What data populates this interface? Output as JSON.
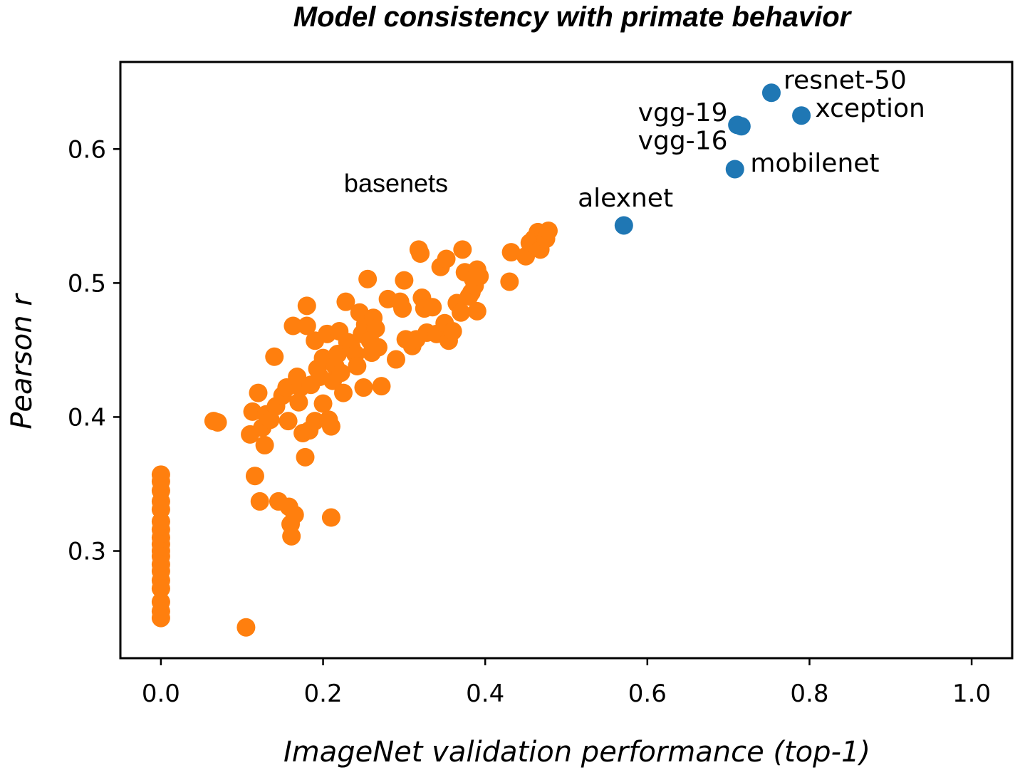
{
  "chart_data": {
    "type": "scatter",
    "title": "Model consistency with primate behavior",
    "xlabel": "ImageNet validation performance (top-1)",
    "ylabel": "Pearson r",
    "xlim": [
      -0.05,
      1.05
    ],
    "ylim": [
      0.22,
      0.665
    ],
    "xticks": [
      0.0,
      0.2,
      0.4,
      0.6,
      0.8,
      1.0
    ],
    "xtick_labels": [
      "0.0",
      "0.2",
      "0.4",
      "0.6",
      "0.8",
      "1.0"
    ],
    "yticks": [
      0.3,
      0.4,
      0.5,
      0.6
    ],
    "ytick_labels": [
      "0.3",
      "0.4",
      "0.5",
      "0.6"
    ],
    "grid": false,
    "series": [
      {
        "color": "#ff7f0e",
        "points": [
          [
            0.0,
            0.357
          ],
          [
            0.0,
            0.352
          ],
          [
            0.0,
            0.345
          ],
          [
            0.0,
            0.337
          ],
          [
            0.0,
            0.331
          ],
          [
            0.0,
            0.322
          ],
          [
            0.0,
            0.316
          ],
          [
            0.0,
            0.31
          ],
          [
            0.0,
            0.305
          ],
          [
            0.0,
            0.3
          ],
          [
            0.0,
            0.296
          ],
          [
            0.0,
            0.29
          ],
          [
            0.0,
            0.285
          ],
          [
            0.0,
            0.278
          ],
          [
            0.0,
            0.272
          ],
          [
            0.0,
            0.262
          ],
          [
            0.0,
            0.255
          ],
          [
            0.0,
            0.25
          ],
          [
            0.065,
            0.397
          ],
          [
            0.07,
            0.396
          ],
          [
            0.105,
            0.243
          ],
          [
            0.11,
            0.387
          ],
          [
            0.113,
            0.404
          ],
          [
            0.116,
            0.356
          ],
          [
            0.12,
            0.418
          ],
          [
            0.122,
            0.337
          ],
          [
            0.125,
            0.392
          ],
          [
            0.128,
            0.379
          ],
          [
            0.13,
            0.402
          ],
          [
            0.135,
            0.398
          ],
          [
            0.14,
            0.445
          ],
          [
            0.142,
            0.408
          ],
          [
            0.145,
            0.337
          ],
          [
            0.15,
            0.416
          ],
          [
            0.155,
            0.422
          ],
          [
            0.157,
            0.397
          ],
          [
            0.158,
            0.333
          ],
          [
            0.16,
            0.32
          ],
          [
            0.161,
            0.311
          ],
          [
            0.163,
            0.468
          ],
          [
            0.165,
            0.327
          ],
          [
            0.168,
            0.43
          ],
          [
            0.17,
            0.411
          ],
          [
            0.172,
            0.422
          ],
          [
            0.175,
            0.388
          ],
          [
            0.178,
            0.37
          ],
          [
            0.18,
            0.468
          ],
          [
            0.18,
            0.483
          ],
          [
            0.183,
            0.39
          ],
          [
            0.185,
            0.424
          ],
          [
            0.19,
            0.457
          ],
          [
            0.19,
            0.397
          ],
          [
            0.193,
            0.436
          ],
          [
            0.196,
            0.43
          ],
          [
            0.2,
            0.444
          ],
          [
            0.2,
            0.41
          ],
          [
            0.205,
            0.462
          ],
          [
            0.207,
            0.398
          ],
          [
            0.21,
            0.325
          ],
          [
            0.21,
            0.393
          ],
          [
            0.212,
            0.427
          ],
          [
            0.215,
            0.438
          ],
          [
            0.218,
            0.447
          ],
          [
            0.22,
            0.464
          ],
          [
            0.222,
            0.433
          ],
          [
            0.225,
            0.418
          ],
          [
            0.228,
            0.486
          ],
          [
            0.23,
            0.456
          ],
          [
            0.235,
            0.452
          ],
          [
            0.24,
            0.447
          ],
          [
            0.242,
            0.438
          ],
          [
            0.245,
            0.478
          ],
          [
            0.248,
            0.462
          ],
          [
            0.25,
            0.422
          ],
          [
            0.252,
            0.469
          ],
          [
            0.255,
            0.503
          ],
          [
            0.258,
            0.457
          ],
          [
            0.26,
            0.448
          ],
          [
            0.262,
            0.474
          ],
          [
            0.265,
            0.466
          ],
          [
            0.268,
            0.452
          ],
          [
            0.272,
            0.423
          ],
          [
            0.28,
            0.488
          ],
          [
            0.29,
            0.443
          ],
          [
            0.295,
            0.486
          ],
          [
            0.298,
            0.481
          ],
          [
            0.3,
            0.502
          ],
          [
            0.302,
            0.458
          ],
          [
            0.31,
            0.453
          ],
          [
            0.315,
            0.458
          ],
          [
            0.318,
            0.525
          ],
          [
            0.32,
            0.522
          ],
          [
            0.322,
            0.489
          ],
          [
            0.325,
            0.481
          ],
          [
            0.328,
            0.463
          ],
          [
            0.335,
            0.482
          ],
          [
            0.34,
            0.462
          ],
          [
            0.345,
            0.512
          ],
          [
            0.35,
            0.47
          ],
          [
            0.352,
            0.518
          ],
          [
            0.355,
            0.457
          ],
          [
            0.36,
            0.464
          ],
          [
            0.365,
            0.485
          ],
          [
            0.37,
            0.478
          ],
          [
            0.372,
            0.525
          ],
          [
            0.375,
            0.508
          ],
          [
            0.38,
            0.49
          ],
          [
            0.383,
            0.493
          ],
          [
            0.385,
            0.503
          ],
          [
            0.387,
            0.498
          ],
          [
            0.39,
            0.479
          ],
          [
            0.39,
            0.51
          ],
          [
            0.393,
            0.505
          ],
          [
            0.43,
            0.501
          ],
          [
            0.432,
            0.523
          ],
          [
            0.45,
            0.52
          ],
          [
            0.455,
            0.53
          ],
          [
            0.46,
            0.533
          ],
          [
            0.465,
            0.538
          ],
          [
            0.468,
            0.525
          ],
          [
            0.472,
            0.537
          ],
          [
            0.475,
            0.533
          ],
          [
            0.478,
            0.539
          ]
        ]
      },
      {
        "color": "#1f77b4",
        "points": [
          [
            0.571,
            0.543
          ],
          [
            0.708,
            0.585
          ],
          [
            0.711,
            0.618
          ],
          [
            0.716,
            0.617
          ],
          [
            0.753,
            0.642
          ],
          [
            0.79,
            0.625
          ]
        ]
      }
    ],
    "annotations": [
      {
        "text": "basenets",
        "x": 0.29,
        "y": 0.568,
        "anchor": "middle"
      },
      {
        "text": "alexnet",
        "x": 0.573,
        "y": 0.557,
        "anchor": "middle"
      },
      {
        "text": "mobilenet",
        "x": 0.727,
        "y": 0.583,
        "anchor": "start"
      },
      {
        "text": "vgg-16",
        "x": 0.699,
        "y": 0.6,
        "anchor": "end"
      },
      {
        "text": "vgg-19",
        "x": 0.699,
        "y": 0.621,
        "anchor": "end"
      },
      {
        "text": "resnet-50",
        "x": 0.768,
        "y": 0.645,
        "anchor": "start"
      },
      {
        "text": "xception",
        "x": 0.807,
        "y": 0.624,
        "anchor": "start"
      }
    ]
  }
}
